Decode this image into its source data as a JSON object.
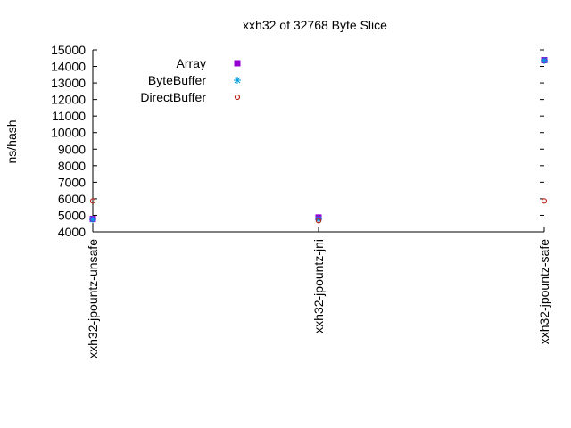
{
  "chart_data": {
    "type": "scatter",
    "title": "xxh32 of 32768 Byte Slice",
    "xlabel": "",
    "ylabel": "ns/hash",
    "categories": [
      "xxh32-jpountz-unsafe",
      "xxh32-jpountz-jni",
      "xxh32-jpountz-safe"
    ],
    "ylim": [
      4000,
      15000
    ],
    "yticks": [
      4000,
      5000,
      6000,
      7000,
      8000,
      9000,
      10000,
      11000,
      12000,
      13000,
      14000,
      15000
    ],
    "grid": false,
    "legend_position": "top-left",
    "series": [
      {
        "name": "Array",
        "values": [
          4780,
          4870,
          14380
        ],
        "color": "#9400d3",
        "marker": "filled-square"
      },
      {
        "name": "ByteBuffer",
        "values": [
          4750,
          4760,
          14360
        ],
        "color": "#009ee0",
        "marker": "asterisk"
      },
      {
        "name": "DirectBuffer",
        "values": [
          5870,
          4680,
          5870
        ],
        "color": "#c0281c",
        "marker": "open-circle"
      }
    ]
  }
}
